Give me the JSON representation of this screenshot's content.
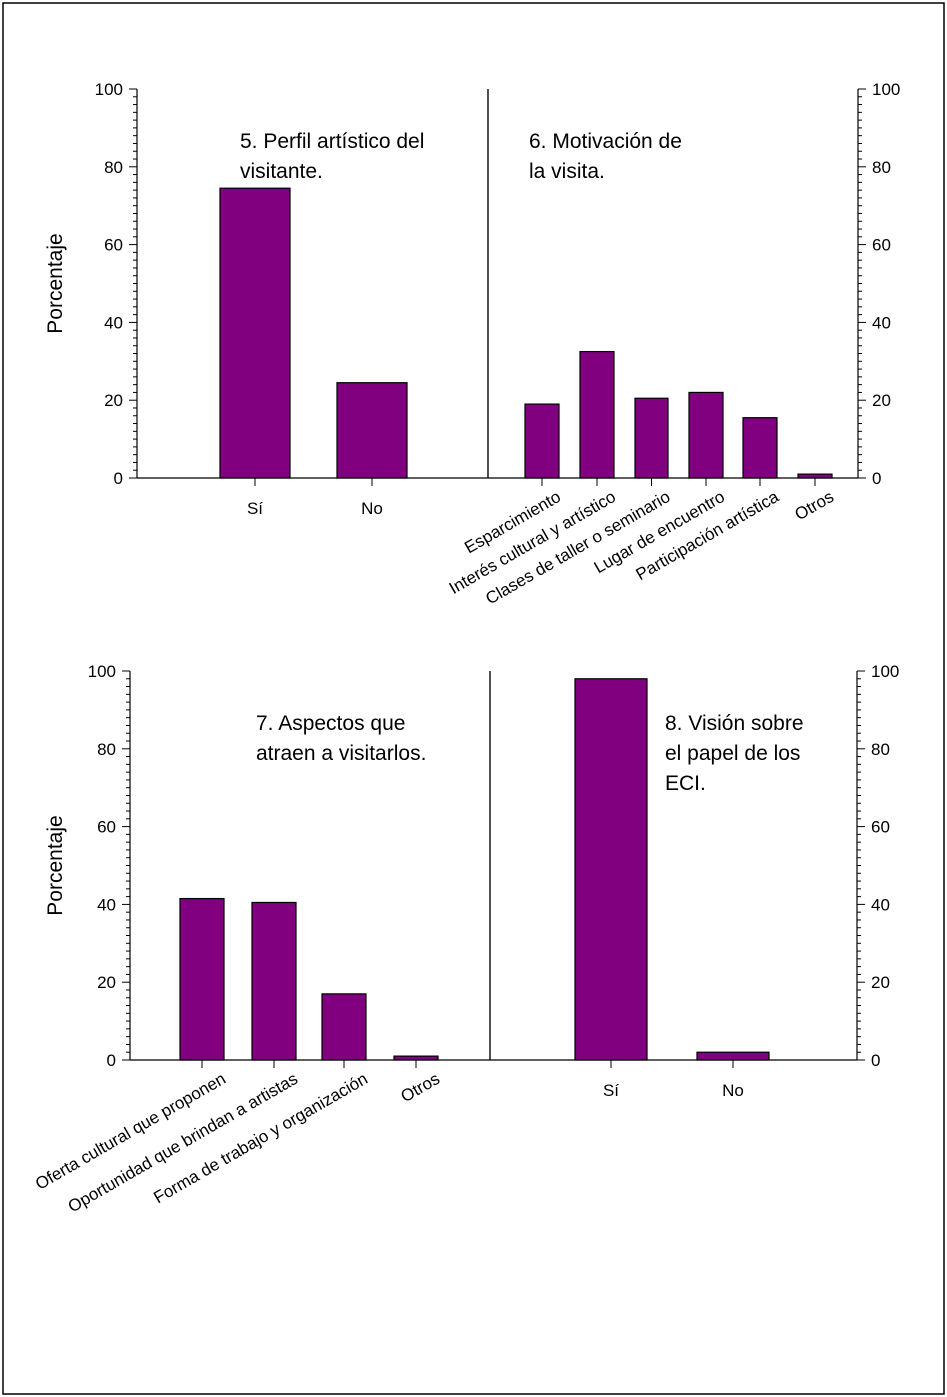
{
  "bar_color": "#800080",
  "chart_data": [
    {
      "type": "bar",
      "title_lines": [
        "5. Perfil artístico del",
        "visitante."
      ],
      "ylabel": "Porcentaje",
      "ylim": [
        0,
        100
      ],
      "yticks": [
        "0",
        "20",
        "40",
        "60",
        "80",
        "100"
      ],
      "categories": [
        "Sí",
        "No"
      ],
      "values": [
        74.5,
        24.5
      ]
    },
    {
      "type": "bar",
      "title_lines": [
        "6. Motivación de",
        "la visita."
      ],
      "ylabel": "",
      "ylim": [
        0,
        100
      ],
      "yticks": [
        "0",
        "20",
        "40",
        "60",
        "80",
        "100"
      ],
      "categories": [
        "Esparcimiento",
        "Interés cultural y artístico",
        "Clases de taller o seminario",
        "Lugar de encuentro",
        "Participación artística",
        "Otros"
      ],
      "values": [
        19,
        32.5,
        20.5,
        22,
        15.5,
        1
      ]
    },
    {
      "type": "bar",
      "title_lines": [
        "7. Aspectos que",
        "atraen a visitarlos."
      ],
      "ylabel": "Porcentaje",
      "ylim": [
        0,
        100
      ],
      "yticks": [
        "0",
        "20",
        "40",
        "60",
        "80",
        "100"
      ],
      "categories": [
        "Oferta cultural que proponen",
        "Oportunidad que brindan a artistas",
        "Forma de trabajo y organización",
        "Otros"
      ],
      "values": [
        41.5,
        40.5,
        17,
        1
      ]
    },
    {
      "type": "bar",
      "title_lines": [
        "8. Visión sobre",
        "el papel de los",
        "ECI."
      ],
      "ylabel": "",
      "ylim": [
        0,
        100
      ],
      "yticks": [
        "0",
        "20",
        "40",
        "60",
        "80",
        "100"
      ],
      "categories": [
        "Sí",
        "No"
      ],
      "values": [
        98,
        2
      ]
    }
  ]
}
